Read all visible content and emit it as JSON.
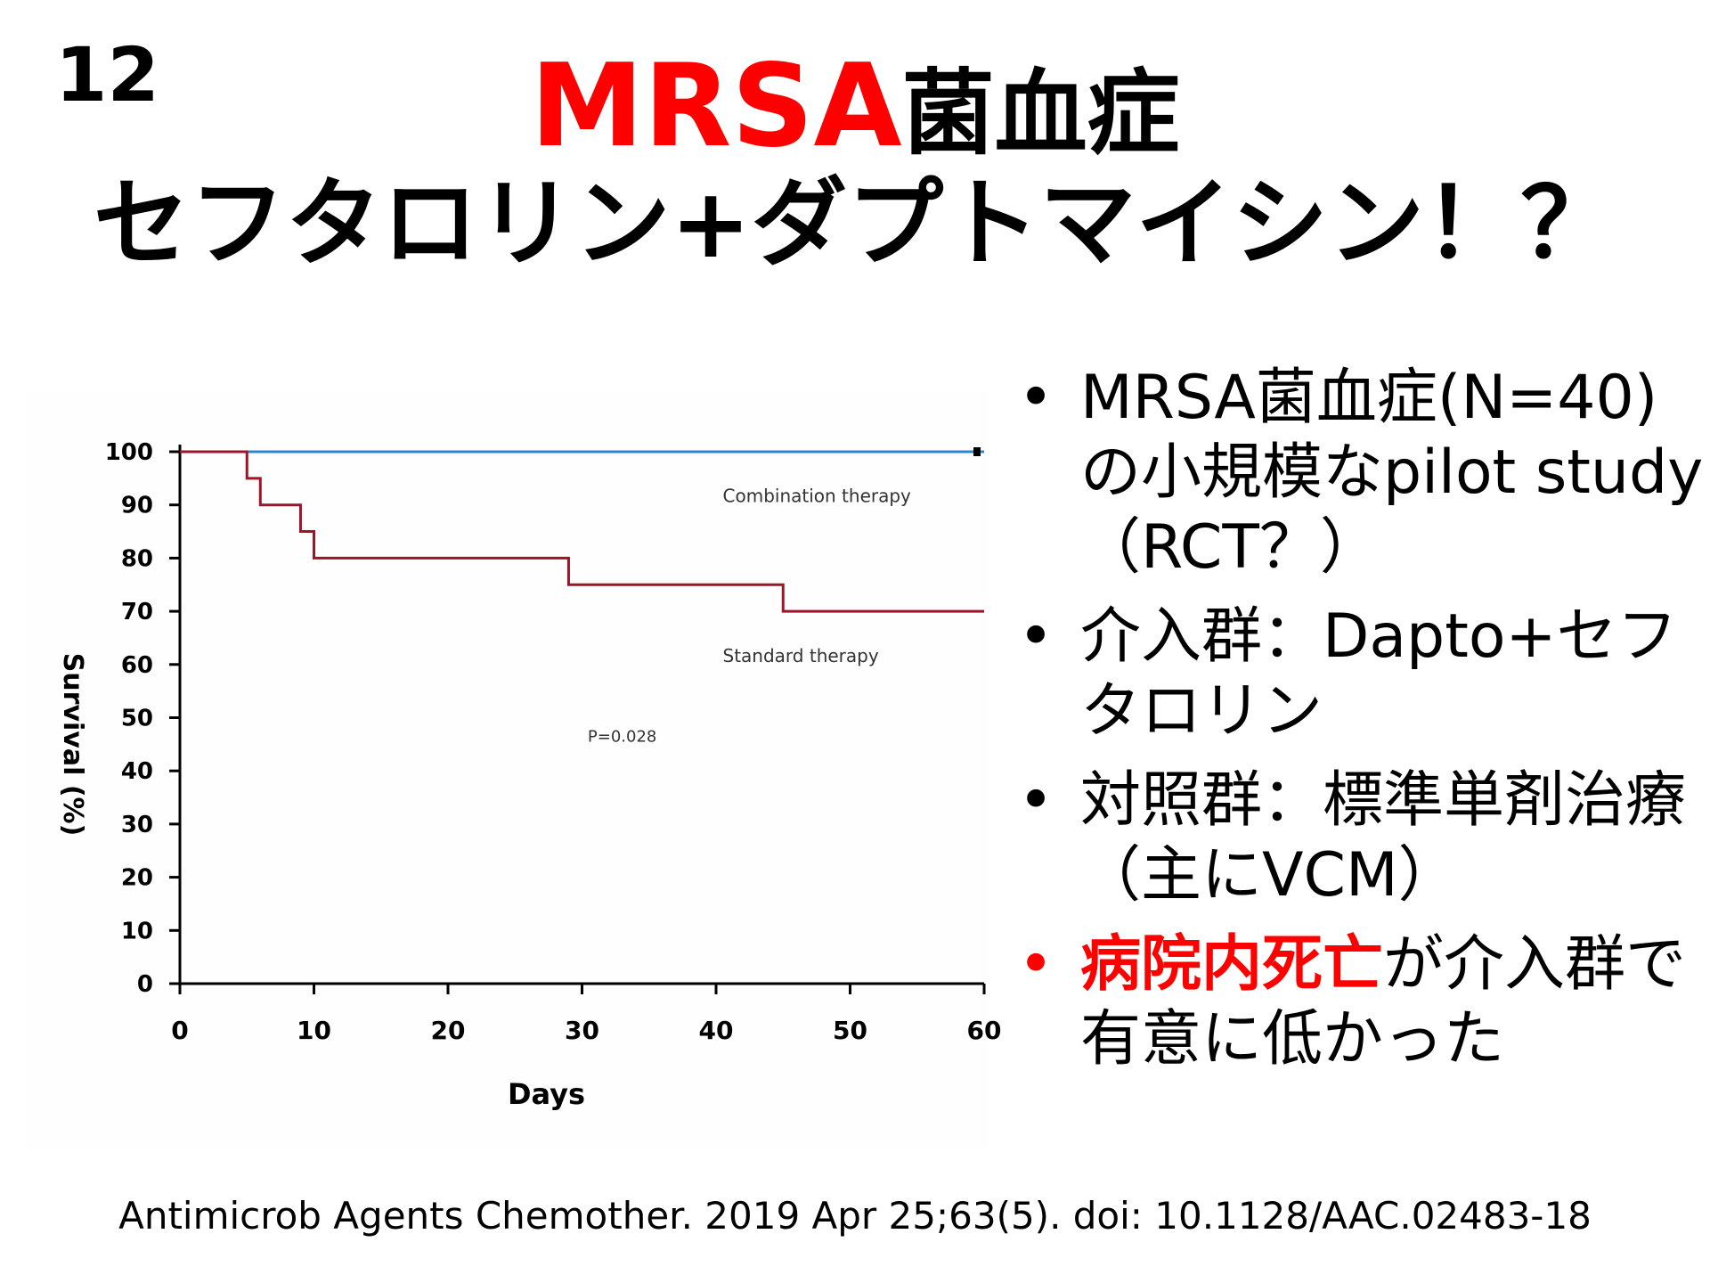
{
  "slide": {
    "number": "12",
    "title_line1_red": "MRSA",
    "title_line1_black": "菌血症",
    "title_line2": "セフタロリン+ダプトマイシン！？"
  },
  "bullets": [
    {
      "marker": "•",
      "text": "MRSA菌血症(N=40)の小規模なpilot study（RCT？）"
    },
    {
      "marker": "•",
      "text": "介入群：Dapto+セフタロリン"
    },
    {
      "marker": "•",
      "text": "対照群：標準単剤治療（主にVCM）"
    },
    {
      "marker": "•",
      "highlight": "病院内死亡",
      "text": "が介入群で有意に低かった"
    }
  ],
  "citation": "Antimicrob Agents Chemother. 2019 Apr 25;63(5). doi: 10.1128/AAC.02483-18",
  "chart_data": {
    "type": "line",
    "step": true,
    "xlabel": "Days",
    "ylabel": "Survival (%)",
    "xlim": [
      0,
      60
    ],
    "ylim": [
      0,
      100
    ],
    "xticks": [
      0,
      10,
      20,
      30,
      40,
      50,
      60
    ],
    "yticks": [
      0,
      10,
      20,
      30,
      40,
      50,
      60,
      70,
      80,
      90,
      100
    ],
    "grid": false,
    "series": [
      {
        "name": "Combination therapy",
        "color": "#2e86c8",
        "x": [
          0,
          60
        ],
        "y": [
          100,
          100
        ]
      },
      {
        "name": "Standard therapy",
        "color": "#a0142a",
        "x": [
          0,
          5,
          6,
          9,
          10,
          29,
          45,
          60
        ],
        "y": [
          100,
          95,
          90,
          85,
          80,
          75,
          70,
          70
        ]
      }
    ],
    "annotation": "P=0.028"
  }
}
